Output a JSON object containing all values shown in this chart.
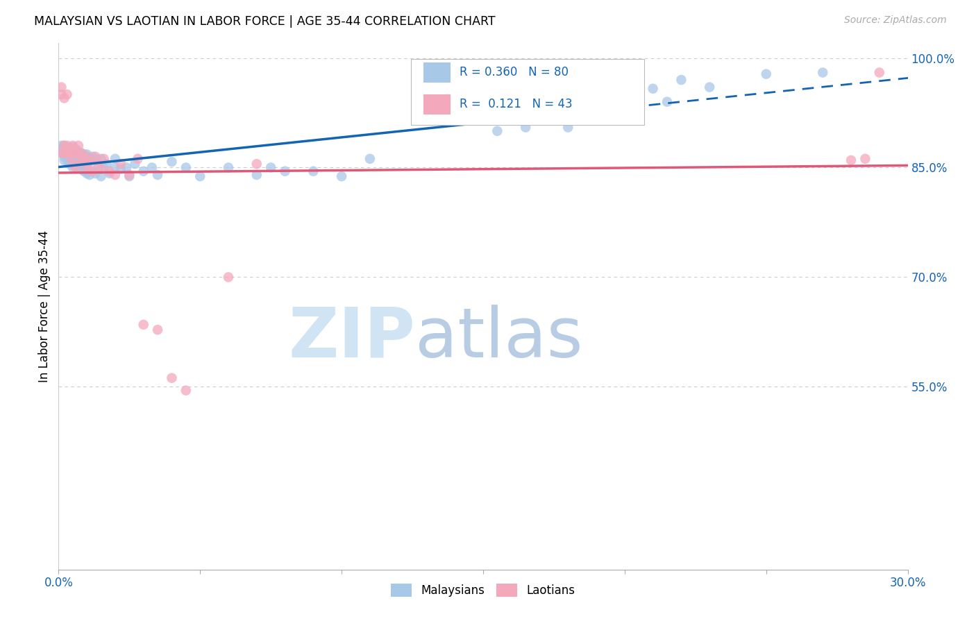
{
  "title": "MALAYSIAN VS LAOTIAN IN LABOR FORCE | AGE 35-44 CORRELATION CHART",
  "source": "Source: ZipAtlas.com",
  "ylabel": "In Labor Force | Age 35-44",
  "xlim": [
    0.0,
    0.3
  ],
  "ylim": [
    0.3,
    1.02
  ],
  "ytick_positions": [
    0.55,
    0.7,
    0.85,
    1.0
  ],
  "ytick_labels": [
    "55.0%",
    "70.0%",
    "85.0%",
    "100.0%"
  ],
  "xtick_positions": [
    0.0,
    0.05,
    0.1,
    0.15,
    0.2,
    0.25,
    0.3
  ],
  "xtick_labels": [
    "0.0%",
    "",
    "",
    "",
    "",
    "",
    "30.0%"
  ],
  "blue_color": "#a8c8e8",
  "pink_color": "#f4a8bc",
  "trend_blue": "#1464b4",
  "trend_pink": "#e05878",
  "watermark_zip_color": "#d0e4f4",
  "watermark_atlas_color": "#b8cce4",
  "blue_scatter_x": [
    0.001,
    0.001,
    0.001,
    0.002,
    0.002,
    0.002,
    0.002,
    0.003,
    0.003,
    0.003,
    0.003,
    0.004,
    0.004,
    0.004,
    0.005,
    0.005,
    0.005,
    0.005,
    0.005,
    0.006,
    0.006,
    0.006,
    0.006,
    0.007,
    0.007,
    0.007,
    0.007,
    0.008,
    0.008,
    0.008,
    0.009,
    0.009,
    0.009,
    0.01,
    0.01,
    0.01,
    0.011,
    0.011,
    0.012,
    0.012,
    0.013,
    0.013,
    0.014,
    0.015,
    0.015,
    0.016,
    0.017,
    0.018,
    0.02,
    0.02,
    0.022,
    0.024,
    0.025,
    0.027,
    0.03,
    0.033,
    0.035,
    0.04,
    0.045,
    0.05,
    0.06,
    0.07,
    0.075,
    0.08,
    0.09,
    0.1,
    0.11,
    0.13,
    0.155,
    0.165,
    0.18,
    0.195,
    0.2,
    0.205,
    0.21,
    0.215,
    0.22,
    0.23,
    0.25,
    0.27
  ],
  "blue_scatter_y": [
    0.87,
    0.875,
    0.88,
    0.86,
    0.865,
    0.87,
    0.88,
    0.86,
    0.865,
    0.87,
    0.875,
    0.855,
    0.865,
    0.875,
    0.85,
    0.858,
    0.865,
    0.87,
    0.878,
    0.852,
    0.86,
    0.868,
    0.875,
    0.85,
    0.856,
    0.865,
    0.872,
    0.848,
    0.858,
    0.87,
    0.845,
    0.855,
    0.868,
    0.842,
    0.855,
    0.868,
    0.84,
    0.86,
    0.845,
    0.865,
    0.842,
    0.862,
    0.85,
    0.838,
    0.862,
    0.85,
    0.855,
    0.842,
    0.85,
    0.862,
    0.848,
    0.85,
    0.838,
    0.855,
    0.845,
    0.85,
    0.84,
    0.858,
    0.85,
    0.838,
    0.85,
    0.84,
    0.85,
    0.845,
    0.845,
    0.838,
    0.862,
    0.92,
    0.9,
    0.905,
    0.905,
    0.92,
    0.958,
    0.95,
    0.958,
    0.94,
    0.97,
    0.96,
    0.978,
    0.98
  ],
  "pink_scatter_x": [
    0.001,
    0.001,
    0.001,
    0.002,
    0.002,
    0.002,
    0.003,
    0.003,
    0.003,
    0.004,
    0.004,
    0.005,
    0.005,
    0.005,
    0.006,
    0.006,
    0.007,
    0.007,
    0.008,
    0.008,
    0.009,
    0.01,
    0.01,
    0.011,
    0.012,
    0.013,
    0.014,
    0.015,
    0.016,
    0.018,
    0.02,
    0.022,
    0.025,
    0.028,
    0.03,
    0.035,
    0.04,
    0.045,
    0.06,
    0.07,
    0.28,
    0.285,
    0.29
  ],
  "pink_scatter_y": [
    0.95,
    0.96,
    0.87,
    0.945,
    0.87,
    0.88,
    0.95,
    0.88,
    0.87,
    0.865,
    0.875,
    0.855,
    0.87,
    0.88,
    0.85,
    0.87,
    0.868,
    0.88,
    0.858,
    0.87,
    0.86,
    0.848,
    0.865,
    0.858,
    0.845,
    0.865,
    0.855,
    0.848,
    0.862,
    0.845,
    0.84,
    0.855,
    0.84,
    0.862,
    0.635,
    0.628,
    0.562,
    0.545,
    0.7,
    0.855,
    0.86,
    0.862,
    0.98
  ]
}
